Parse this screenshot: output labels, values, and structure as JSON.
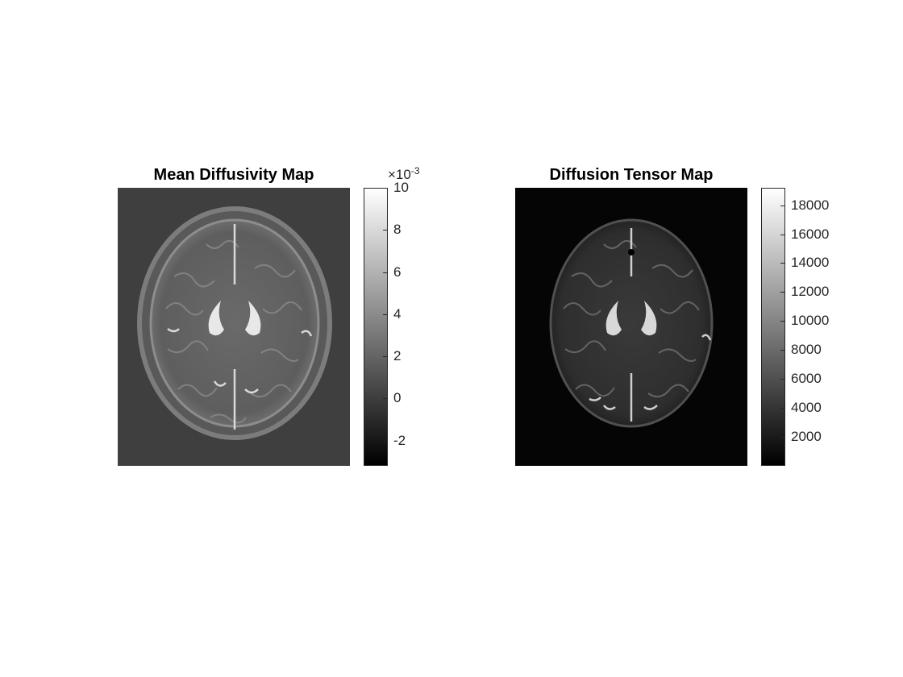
{
  "left": {
    "title": "Mean Diffusivity Map",
    "colorbar": {
      "exponent_prefix": "×10",
      "exponent_power": "-3",
      "min": -3.2,
      "max": 10,
      "ticks": [
        {
          "value": 10,
          "label": "10"
        },
        {
          "value": 8,
          "label": "8"
        },
        {
          "value": 6,
          "label": "6"
        },
        {
          "value": 4,
          "label": "4"
        },
        {
          "value": 2,
          "label": "2"
        },
        {
          "value": 0,
          "label": "0"
        },
        {
          "value": -2,
          "label": "-2"
        }
      ],
      "colormap": "gray"
    }
  },
  "right": {
    "title": "Diffusion Tensor Map",
    "colorbar": {
      "min": 0,
      "max": 19200,
      "ticks": [
        {
          "value": 18000,
          "label": "18000"
        },
        {
          "value": 16000,
          "label": "16000"
        },
        {
          "value": 14000,
          "label": "14000"
        },
        {
          "value": 12000,
          "label": "12000"
        },
        {
          "value": 10000,
          "label": "10000"
        },
        {
          "value": 8000,
          "label": "8000"
        },
        {
          "value": 6000,
          "label": "6000"
        },
        {
          "value": 4000,
          "label": "4000"
        },
        {
          "value": 2000,
          "label": "2000"
        }
      ],
      "colormap": "gray"
    }
  },
  "colors": {
    "left_background": "#3f3f3f",
    "right_background": "#050505"
  }
}
